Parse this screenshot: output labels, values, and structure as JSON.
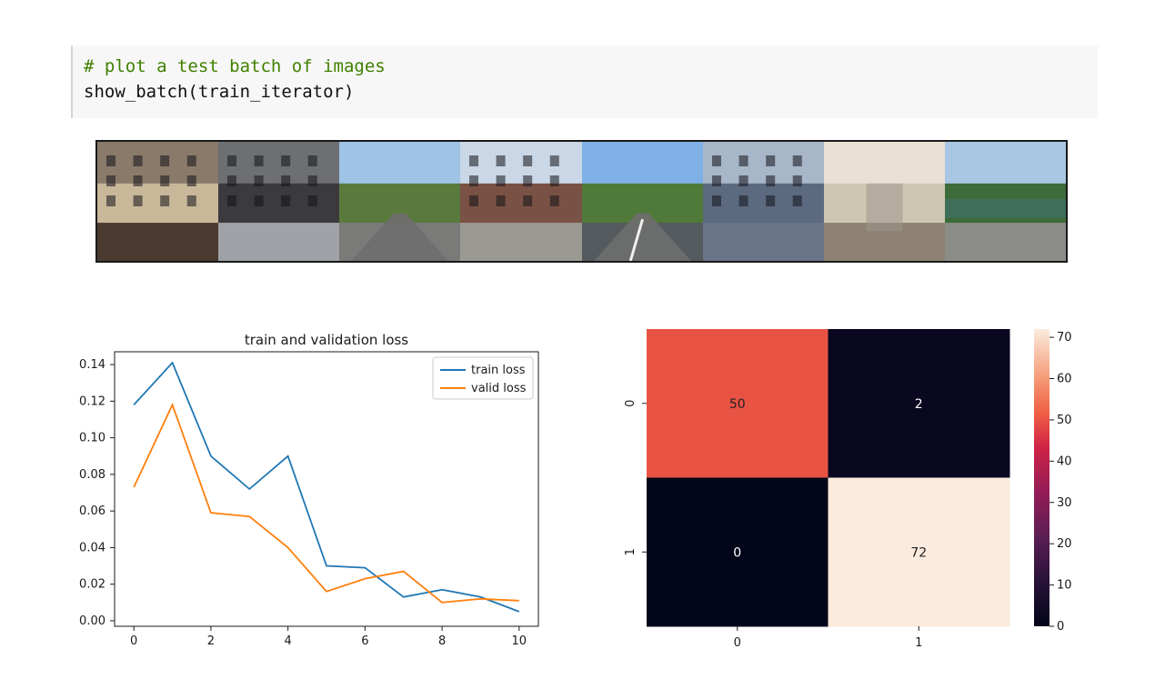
{
  "notebook": {
    "code_cell": {
      "comment": "# plot a test batch of images",
      "call": "show_batch(train_iterator)"
    }
  },
  "image_batch": {
    "tiles": [
      {
        "icon": "street-building-photo",
        "colors": [
          "#8a7a6a",
          "#c9b79a",
          "#4a3a30"
        ]
      },
      {
        "icon": "dark-brick-building-photo",
        "colors": [
          "#6d6f72",
          "#3b3a3d",
          "#9fa2a6"
        ]
      },
      {
        "icon": "country-road-photo",
        "colors": [
          "#9fc3e6",
          "#5a7a3d",
          "#7a7a78"
        ]
      },
      {
        "icon": "brick-apartment-photo",
        "colors": [
          "#c9d7e6",
          "#7a5245",
          "#9a9a92"
        ]
      },
      {
        "icon": "highway-road-photo",
        "colors": [
          "#7fb0e6",
          "#4f7a3a",
          "#555a5e"
        ]
      },
      {
        "icon": "scaffold-building-photo",
        "colors": [
          "#a7b6c9",
          "#5c6a80",
          "#6a7488"
        ]
      },
      {
        "icon": "beige-wall-photo",
        "colors": [
          "#e8e1d3",
          "#cfc5b3",
          "#8d8272"
        ]
      },
      {
        "icon": "green-fence-photo",
        "colors": [
          "#a9c6e3",
          "#3d6b3a",
          "#8c8c88"
        ]
      }
    ]
  },
  "chart_data": [
    {
      "type": "line",
      "title": "train and validation loss",
      "xlabel": "",
      "ylabel": "",
      "x": [
        0,
        1,
        2,
        3,
        4,
        5,
        6,
        7,
        8,
        9,
        10
      ],
      "xlim": [
        -0.5,
        10.5
      ],
      "ylim": [
        -0.003,
        0.147
      ],
      "xticks": [
        0,
        2,
        4,
        6,
        8,
        10
      ],
      "yticks": [
        0.0,
        0.02,
        0.04,
        0.06,
        0.08,
        0.1,
        0.12,
        0.14
      ],
      "ytick_labels": [
        "0.00",
        "0.02",
        "0.04",
        "0.06",
        "0.08",
        "0.10",
        "0.12",
        "0.14"
      ],
      "grid": false,
      "legend_position": "top-right",
      "series": [
        {
          "name": "train loss",
          "color": "#1f77b4",
          "values": [
            0.118,
            0.141,
            0.09,
            0.072,
            0.09,
            0.03,
            0.029,
            0.013,
            0.017,
            0.013,
            0.005
          ]
        },
        {
          "name": "valid loss",
          "color": "#ff7f0e",
          "values": [
            0.073,
            0.118,
            0.059,
            0.057,
            0.04,
            0.016,
            0.023,
            0.027,
            0.01,
            0.012,
            0.011
          ]
        }
      ]
    },
    {
      "type": "heatmap",
      "title": "",
      "row_labels": [
        "0",
        "1"
      ],
      "col_labels": [
        "0",
        "1"
      ],
      "values": [
        [
          50,
          2
        ],
        [
          0,
          72
        ]
      ],
      "colorbar": {
        "min": 0,
        "max": 72,
        "ticks": [
          0,
          10,
          20,
          30,
          40,
          50,
          60,
          70
        ],
        "tick_labels": [
          "0",
          "10",
          "20",
          "30",
          "40",
          "50",
          "60",
          "70"
        ],
        "colormap": "rocket"
      }
    }
  ]
}
